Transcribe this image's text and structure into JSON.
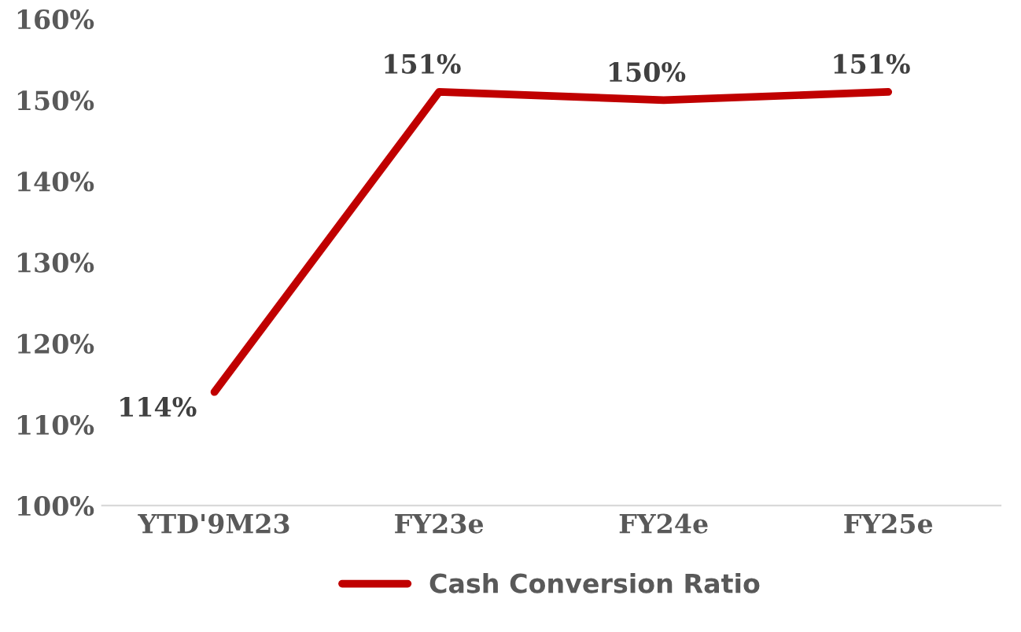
{
  "chart_data": {
    "type": "line",
    "categories": [
      "YTD'9M23",
      "FY23e",
      "FY24e",
      "FY25e"
    ],
    "series": [
      {
        "name": "Cash Conversion Ratio",
        "color": "#c00000",
        "values": [
          114,
          151,
          150,
          151
        ],
        "value_labels": [
          "114%",
          "151%",
          "150%",
          "151%"
        ]
      }
    ],
    "ylim": [
      100,
      160
    ],
    "yticks": [
      {
        "value": 100,
        "label": "100%"
      },
      {
        "value": 110,
        "label": "110%"
      },
      {
        "value": 120,
        "label": "120%"
      },
      {
        "value": 130,
        "label": "130%"
      },
      {
        "value": 140,
        "label": "140%"
      },
      {
        "value": 150,
        "label": "150%"
      },
      {
        "value": 160,
        "label": "160%"
      }
    ],
    "grid": false,
    "legend": "bottom",
    "marker": "none",
    "line_style": "solid"
  }
}
